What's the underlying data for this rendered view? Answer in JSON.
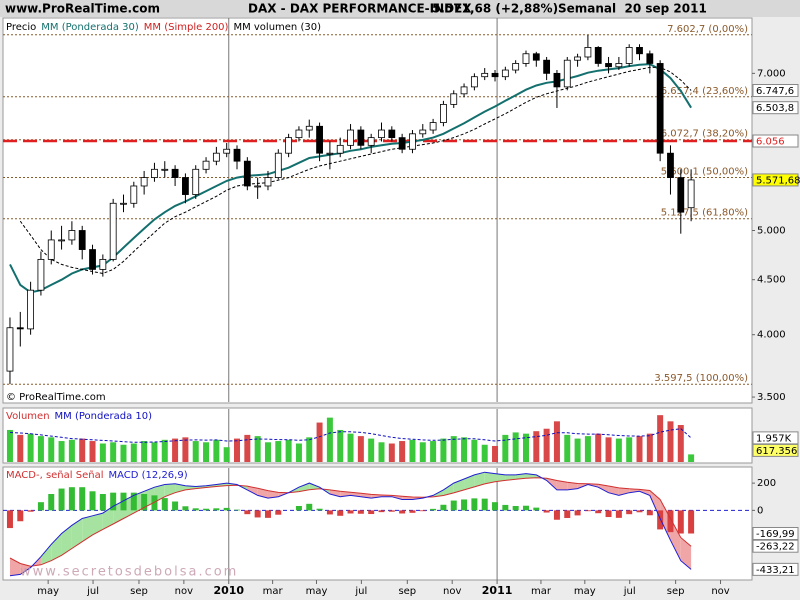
{
  "header": {
    "site": "www.ProRealTime.com",
    "instrument": "DAX - DAX PERFORMANCE-INDEX",
    "price": "5.571,68 (+2,88%)",
    "period": "Semanal  20 sep 2011"
  },
  "watermark": "www.secretosdebolsa.com",
  "chart_data": [
    {
      "type": "candlestick",
      "name": "Precio",
      "log": true,
      "ylim": [
        3478,
        7881
      ],
      "yticks": [
        {
          "value": 3500,
          "label": "3.500"
        },
        {
          "value": 4000,
          "label": "4.000"
        },
        {
          "value": 4500,
          "label": "4.500"
        },
        {
          "value": 5000,
          "label": "5.000"
        },
        {
          "value": 7000,
          "label": "7.000"
        }
      ],
      "xlim": [
        -1.35,
        143.8
      ],
      "xticks": [
        {
          "value": 7.4,
          "label": "may"
        },
        {
          "value": 16.1,
          "label": "jul"
        },
        {
          "value": 25,
          "label": "sep"
        },
        {
          "value": 33.7,
          "label": "nov"
        },
        {
          "value": 42.4,
          "label": "2010"
        },
        {
          "value": 50.9,
          "label": "mar"
        },
        {
          "value": 59.4,
          "label": "may"
        },
        {
          "value": 68.1,
          "label": "jul"
        },
        {
          "value": 77,
          "label": "sep"
        },
        {
          "value": 85.7,
          "label": "nov"
        },
        {
          "value": 94.4,
          "label": "2011"
        },
        {
          "value": 102.9,
          "label": "mar"
        },
        {
          "value": 111.4,
          "label": "may"
        },
        {
          "value": 120.1,
          "label": "jul"
        },
        {
          "value": 129,
          "label": "sep"
        },
        {
          "value": 137.7,
          "label": "nov"
        }
      ],
      "x": [
        0,
        2,
        4,
        6,
        8,
        10,
        12,
        14,
        16,
        18,
        20,
        22,
        24,
        26,
        28,
        30,
        32,
        34,
        36,
        38,
        40,
        42,
        44,
        46,
        48,
        50,
        52,
        54,
        56,
        58,
        60,
        62,
        64,
        66,
        68,
        70,
        72,
        74,
        76,
        78,
        80,
        82,
        84,
        86,
        88,
        90,
        92,
        94,
        96,
        98,
        100,
        102,
        104,
        106,
        108,
        110,
        112,
        114,
        116,
        118,
        120,
        122,
        124,
        126,
        128,
        130,
        132
      ],
      "open": [
        3700,
        4060,
        4050,
        4400,
        4700,
        4900,
        4900,
        5000,
        4800,
        4600,
        4700,
        5300,
        5300,
        5500,
        5600,
        5700,
        5700,
        5600,
        5400,
        5700,
        5800,
        5900,
        5950,
        5800,
        5500,
        5500,
        5600,
        5900,
        6100,
        6200,
        6250,
        5900,
        5900,
        6000,
        6200,
        6000,
        6100,
        6200,
        6100,
        5950,
        6150,
        6200,
        6300,
        6550,
        6700,
        6800,
        6950,
        7000,
        6950,
        7050,
        7150,
        7300,
        7200,
        7000,
        6800,
        7200,
        7250,
        7400,
        7150,
        7100,
        7150,
        7400,
        7300,
        7150,
        5900,
        5600,
        5250
      ],
      "high": [
        4150,
        4200,
        4480,
        4780,
        5000,
        5050,
        5100,
        5050,
        4850,
        4750,
        5350,
        5400,
        5550,
        5680,
        5780,
        5800,
        5750,
        5650,
        5750,
        5850,
        5980,
        6030,
        6000,
        5850,
        5600,
        5680,
        5950,
        6150,
        6250,
        6340,
        6300,
        6050,
        6100,
        6280,
        6250,
        6150,
        6300,
        6250,
        6150,
        6200,
        6280,
        6350,
        6600,
        6750,
        6850,
        7000,
        7080,
        7050,
        7100,
        7200,
        7350,
        7330,
        7250,
        7050,
        7250,
        7300,
        7600,
        7420,
        7250,
        7250,
        7450,
        7450,
        7350,
        7200,
        6000,
        5700,
        5700
      ],
      "low": [
        3598,
        3900,
        4000,
        4350,
        4650,
        4800,
        4850,
        4700,
        4550,
        4530,
        4680,
        5200,
        5250,
        5400,
        5550,
        5600,
        5500,
        5300,
        5350,
        5650,
        5750,
        5850,
        5700,
        5450,
        5350,
        5450,
        5580,
        5850,
        6050,
        6100,
        5800,
        5700,
        5850,
        5950,
        5950,
        5900,
        6050,
        6050,
        5900,
        5900,
        6100,
        6150,
        6250,
        6500,
        6650,
        6750,
        6900,
        6880,
        6900,
        7000,
        7100,
        7100,
        6900,
        6500,
        6750,
        7100,
        7200,
        7100,
        7000,
        7050,
        7100,
        7200,
        7000,
        5800,
        5400,
        4966,
        5100
      ],
      "close": [
        4060,
        4050,
        4400,
        4700,
        4900,
        4900,
        5000,
        4800,
        4600,
        4700,
        5300,
        5300,
        5500,
        5600,
        5700,
        5700,
        5600,
        5400,
        5700,
        5800,
        5900,
        5950,
        5800,
        5500,
        5500,
        5600,
        5900,
        6100,
        6200,
        6250,
        5900,
        5900,
        6000,
        6200,
        6000,
        6100,
        6200,
        6100,
        5950,
        6150,
        6200,
        6300,
        6550,
        6700,
        6800,
        6950,
        7000,
        6950,
        7050,
        7150,
        7300,
        7200,
        7000,
        6800,
        7200,
        7250,
        7400,
        7150,
        7100,
        7150,
        7400,
        7300,
        7150,
        5900,
        5600,
        5200,
        5571.68
      ],
      "last_label": "5.571,68",
      "up_color": "#ffffff",
      "down_color": "#000000",
      "series": [
        {
          "name": "MM (Ponderada 30)",
          "color": "#13706e",
          "legend_color": "#13706e",
          "last_label": "6.503,8",
          "values": [
            4650,
            4450,
            4380,
            4400,
            4450,
            4500,
            4560,
            4600,
            4620,
            4640,
            4720,
            4820,
            4920,
            5020,
            5120,
            5200,
            5270,
            5320,
            5380,
            5440,
            5500,
            5560,
            5600,
            5620,
            5630,
            5640,
            5680,
            5720,
            5780,
            5840,
            5860,
            5880,
            5900,
            5930,
            5950,
            5980,
            6000,
            6020,
            6030,
            6050,
            6070,
            6100,
            6150,
            6220,
            6290,
            6370,
            6450,
            6520,
            6600,
            6680,
            6760,
            6820,
            6860,
            6880,
            6920,
            6960,
            7010,
            7040,
            7060,
            7080,
            7110,
            7130,
            7140,
            7060,
            6930,
            6740,
            6503.8
          ]
        },
        {
          "name": "MM (Simple 200)",
          "color": "#000000",
          "legend_color": "#d02020",
          "dash": true,
          "last_label": "6.747,6",
          "values": [
            null,
            5100,
            4950,
            4800,
            4700,
            4650,
            4620,
            4600,
            4580,
            4560,
            4600,
            4680,
            4780,
            4880,
            4980,
            5080,
            5150,
            5200,
            5260,
            5320,
            5380,
            5450,
            5500,
            5520,
            5530,
            5540,
            5570,
            5600,
            5650,
            5700,
            5740,
            5770,
            5800,
            5830,
            5860,
            5890,
            5920,
            5950,
            5970,
            5990,
            6010,
            6030,
            6060,
            6100,
            6150,
            6210,
            6280,
            6350,
            6420,
            6500,
            6580,
            6650,
            6700,
            6740,
            6780,
            6820,
            6870,
            6910,
            6950,
            6990,
            7030,
            7060,
            7090,
            7090,
            7020,
            6900,
            6747.6
          ]
        }
      ],
      "legend_extra": "MM volumen (30)",
      "levels": {
        "color": "#8b5a2b",
        "items": [
          {
            "value": 7602.7,
            "label": "7.602,7 (0,00%)"
          },
          {
            "value": 6657.4,
            "label": "6.657,4 (23,60%)"
          },
          {
            "value": 6072.7,
            "label": "6.072,7 (38,20%)"
          },
          {
            "value": 5600.1,
            "label": "5.600,1 (50,00%)"
          },
          {
            "value": 5127.5,
            "label": "5.127,5 (61,80%)"
          },
          {
            "value": 3597.5,
            "label": "3.597,5 (100,00%)"
          }
        ]
      },
      "hlines": [
        {
          "value": 6056,
          "label": "6.056",
          "color": "#e02020"
        }
      ],
      "note": "© ProRealTime.com"
    },
    {
      "type": "bar",
      "name": "Volumen",
      "ylim": [
        0,
        4300
      ],
      "up_color": "#3cc83c",
      "down_color": "#d84848",
      "last_label": "617.356",
      "values": [
        2600,
        2200,
        2300,
        2100,
        2000,
        1700,
        1800,
        1900,
        1700,
        1500,
        1600,
        1400,
        1500,
        1700,
        1600,
        1800,
        1900,
        2000,
        1700,
        1600,
        1800,
        1200,
        1900,
        2200,
        2100,
        1600,
        1700,
        1800,
        1500,
        2000,
        3200,
        3600,
        2600,
        2300,
        2100,
        1900,
        1600,
        1500,
        1700,
        1800,
        1600,
        1700,
        1900,
        2100,
        2000,
        1800,
        1400,
        1300,
        2200,
        2400,
        2300,
        2500,
        2700,
        3300,
        2200,
        1900,
        2100,
        2300,
        2000,
        1900,
        2000,
        2100,
        2300,
        3800,
        3300,
        3000,
        617.356
      ],
      "series": [
        {
          "name": "MM (Ponderada 10)",
          "color": "#1010c0",
          "last_label": "1.957K",
          "values": [
            2400,
            2350,
            2300,
            2200,
            2100,
            2000,
            1900,
            1850,
            1800,
            1750,
            1700,
            1650,
            1600,
            1600,
            1620,
            1660,
            1720,
            1780,
            1790,
            1780,
            1790,
            1700,
            1720,
            1800,
            1870,
            1850,
            1820,
            1810,
            1760,
            1800,
            2050,
            2350,
            2450,
            2450,
            2400,
            2300,
            2150,
            2000,
            1900,
            1850,
            1790,
            1760,
            1780,
            1840,
            1880,
            1880,
            1800,
            1700,
            1780,
            1880,
            1970,
            2060,
            2170,
            2380,
            2370,
            2300,
            2260,
            2260,
            2210,
            2150,
            2110,
            2100,
            2130,
            2420,
            2600,
            2700,
            1957
          ]
        }
      ]
    },
    {
      "type": "macd",
      "ylim": [
        -504,
        311
      ],
      "yticks": [
        200,
        0
      ],
      "fill_colors": [
        "#f0a6a6",
        "#a6e2a0"
      ],
      "series": [
        {
          "name": "MACD-, señal Señal",
          "color": "#d03030",
          "last_label": "-263,22",
          "values": [
            -350,
            -390,
            -410,
            -400,
            -370,
            -330,
            -280,
            -230,
            -180,
            -140,
            -100,
            -60,
            -20,
            20,
            60,
            100,
            130,
            150,
            160,
            168,
            175,
            182,
            185,
            178,
            162,
            145,
            132,
            130,
            138,
            152,
            158,
            150,
            140,
            133,
            125,
            117,
            113,
            110,
            103,
            98,
            96,
            99,
            109,
            128,
            150,
            172,
            194,
            210,
            220,
            228,
            236,
            240,
            236,
            219,
            206,
            197,
            196,
            191,
            179,
            165,
            158,
            154,
            146,
            80,
            -60,
            -200,
            -263.22
          ]
        },
        {
          "name": "MACD (12,26,9)",
          "color": "#2020d0",
          "last_label": "-433,21",
          "values": [
            -480,
            -470,
            -420,
            -340,
            -250,
            -170,
            -110,
            -60,
            -40,
            -20,
            30,
            70,
            110,
            140,
            170,
            190,
            195,
            180,
            175,
            180,
            190,
            200,
            190,
            150,
            110,
            90,
            100,
            130,
            170,
            200,
            170,
            120,
            100,
            110,
            100,
            90,
            100,
            100,
            80,
            80,
            90,
            110,
            150,
            200,
            230,
            260,
            280,
            270,
            260,
            260,
            270,
            260,
            220,
            150,
            150,
            160,
            190,
            170,
            130,
            110,
            130,
            140,
            110,
            -60,
            -220,
            -370,
            -433.21
          ]
        }
      ],
      "histogram": {
        "up_color": "#33bb33",
        "down_color": "#d84040",
        "last_label": "-169,99",
        "values": [
          -130,
          -80,
          -10,
          60,
          120,
          160,
          170,
          170,
          140,
          120,
          130,
          130,
          130,
          120,
          110,
          90,
          65,
          30,
          15,
          12,
          15,
          18,
          5,
          -28,
          -52,
          -55,
          -32,
          0,
          32,
          48,
          12,
          -30,
          -40,
          -23,
          -25,
          -27,
          -13,
          -10,
          -23,
          -18,
          -6,
          11,
          41,
          72,
          80,
          88,
          86,
          60,
          40,
          32,
          34,
          20,
          -16,
          -69,
          -56,
          -37,
          -6,
          -21,
          -49,
          -55,
          -28,
          -14,
          -36,
          -140,
          -160,
          -170,
          -169.99
        ]
      }
    }
  ]
}
